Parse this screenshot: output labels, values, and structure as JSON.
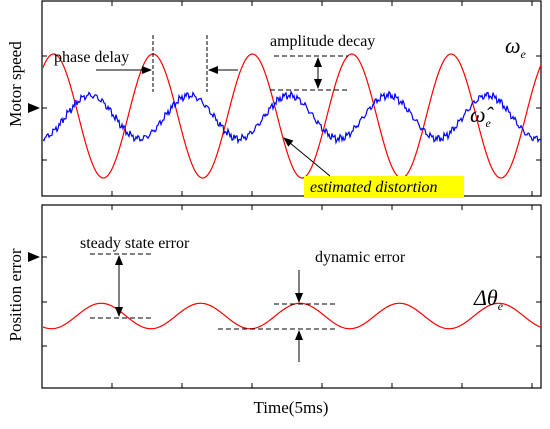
{
  "chart_data": [
    {
      "type": "line",
      "ylabel": "Motor speed",
      "series": [
        {
          "name": "ωe",
          "color": "#ff0000",
          "amplitude": 1.0,
          "period_ms": 7.1
        },
        {
          "name": "ω̂e",
          "color": "#0000ff",
          "amplitude": 0.35,
          "period_ms": 7.1,
          "phase_delay_ms": 2.6
        }
      ],
      "annotations": [
        "phase delay",
        "amplitude decay",
        "estimated distortion"
      ],
      "series_labels": {
        "omega": "ω",
        "omega_sub": "e",
        "omega_hat": "ω̂",
        "omega_hat_sub": "e"
      },
      "highlight_color": "#ffff00",
      "highlight_text_color": "#ff0000"
    },
    {
      "type": "line",
      "ylabel": "Position error",
      "xlabel": "Time(5ms)",
      "series": [
        {
          "name": "Δθe",
          "color": "#ff0000",
          "amplitude": 0.12,
          "period_ms": 7.1
        }
      ],
      "annotations": [
        "steady state error",
        "dynamic error"
      ],
      "series_labels": {
        "delta_theta": "Δθ",
        "delta_theta_sub": "e"
      }
    }
  ]
}
